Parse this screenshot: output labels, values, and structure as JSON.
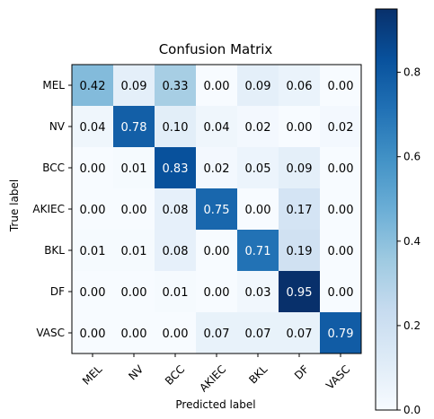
{
  "chart_data": {
    "type": "heatmap",
    "title": "Confusion Matrix",
    "xlabel": "Predicted label",
    "ylabel": "True label",
    "x_categories": [
      "MEL",
      "NV",
      "BCC",
      "AKIEC",
      "BKL",
      "DF",
      "VASC"
    ],
    "y_categories": [
      "MEL",
      "NV",
      "BCC",
      "AKIEC",
      "BKL",
      "DF",
      "VASC"
    ],
    "values": [
      [
        0.42,
        0.09,
        0.33,
        0.0,
        0.09,
        0.06,
        0.0
      ],
      [
        0.04,
        0.78,
        0.1,
        0.04,
        0.02,
        0.0,
        0.02
      ],
      [
        0.0,
        0.01,
        0.83,
        0.02,
        0.05,
        0.09,
        0.0
      ],
      [
        0.0,
        0.0,
        0.08,
        0.75,
        0.0,
        0.17,
        0.0
      ],
      [
        0.01,
        0.01,
        0.08,
        0.0,
        0.71,
        0.19,
        0.0
      ],
      [
        0.0,
        0.0,
        0.01,
        0.0,
        0.03,
        0.95,
        0.0
      ],
      [
        0.0,
        0.0,
        0.0,
        0.07,
        0.07,
        0.07,
        0.79
      ]
    ],
    "value_labels": [
      [
        "0.42",
        "0.09",
        "0.33",
        "0.00",
        "0.09",
        "0.06",
        "0.00"
      ],
      [
        "0.04",
        "0.78",
        "0.10",
        "0.04",
        "0.02",
        "0.00",
        "0.02"
      ],
      [
        "0.00",
        "0.01",
        "0.83",
        "0.02",
        "0.05",
        "0.09",
        "0.00"
      ],
      [
        "0.00",
        "0.00",
        "0.08",
        "0.75",
        "0.00",
        "0.17",
        "0.00"
      ],
      [
        "0.01",
        "0.01",
        "0.08",
        "0.00",
        "0.71",
        "0.19",
        "0.00"
      ],
      [
        "0.00",
        "0.00",
        "0.01",
        "0.00",
        "0.03",
        "0.95",
        "0.00"
      ],
      [
        "0.00",
        "0.00",
        "0.00",
        "0.07",
        "0.07",
        "0.07",
        "0.79"
      ]
    ],
    "colorbar": {
      "ticks": [
        0.0,
        0.2,
        0.4,
        0.6,
        0.8
      ],
      "tick_labels": [
        "0.0",
        "0.2",
        "0.4",
        "0.6",
        "0.8"
      ],
      "range": [
        0.0,
        0.95
      ],
      "colormap": "Blues"
    },
    "text_colors": {
      "dark_cell": "#ffffff",
      "light_cell": "#000000"
    },
    "grid": false
  }
}
